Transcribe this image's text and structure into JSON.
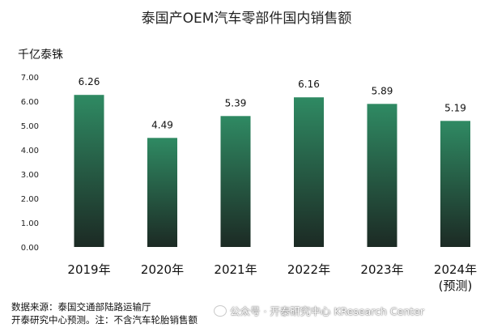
{
  "chart_data": {
    "type": "bar",
    "title": "泰国产OEM汽车零部件国内销售额",
    "ylabel": "千亿泰铢",
    "categories": [
      "2019年",
      "2020年",
      "2021年",
      "2022年",
      "2023年",
      "2024年"
    ],
    "category_sublabels": [
      "",
      "",
      "",
      "",
      "",
      "(预测)"
    ],
    "values": [
      6.26,
      4.49,
      5.39,
      6.16,
      5.89,
      5.19
    ],
    "data_labels": [
      "6.26",
      "4.49",
      "5.39",
      "6.16",
      "5.89",
      "5.19"
    ],
    "ylim": [
      0,
      7
    ],
    "yticks": [
      "0.00",
      "1.00",
      "2.00",
      "3.00",
      "4.00",
      "5.00",
      "6.00",
      "7.00"
    ],
    "grid": false,
    "bar_gradient": {
      "top": "#2f8a63",
      "bottom": "#1c2a24"
    }
  },
  "footer": {
    "source_line": "数据来源：泰国交通部陆路运输厅",
    "note_line": "开泰研究中心预测。注：不含汽车轮胎销售额"
  },
  "watermark": {
    "text": "公众号 · 开泰研究中心 KResearch Center"
  }
}
